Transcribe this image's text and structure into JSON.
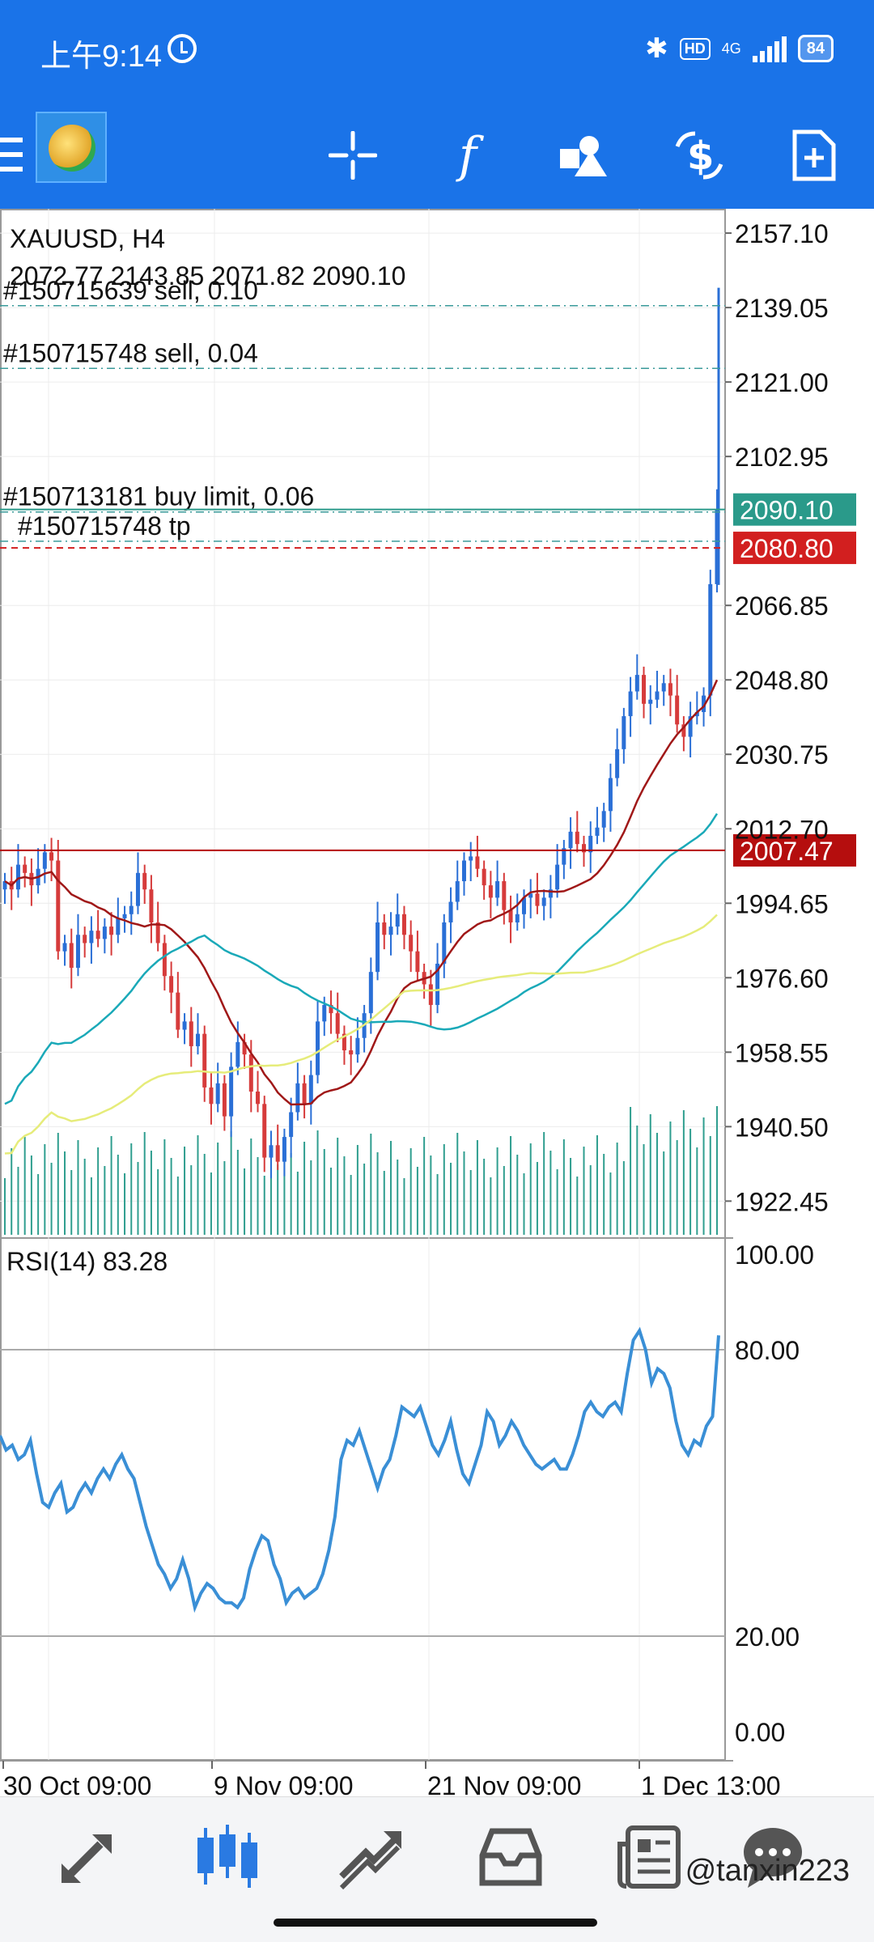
{
  "status_bar": {
    "time": "上午9:14",
    "hd_badge": "HD",
    "network": "4G",
    "battery": "84"
  },
  "toolbar": {
    "items": [
      "menu-icon",
      "app-logo",
      "crosshair-icon",
      "indicators-icon",
      "objects-icon",
      "trade-icon",
      "new-order-icon"
    ],
    "indicator_glyph": "f"
  },
  "chart": {
    "symbol_label": "XAUUSD, H4",
    "ohlc_label": "2072.77 2143.85 2071.82 2090.10",
    "price_axis_labels": [
      "2157.10",
      "2139.05",
      "2121.00",
      "2102.95",
      "2066.85",
      "2048.80",
      "2030.75",
      "2012.70",
      "1994.65",
      "1976.60",
      "1958.55",
      "1940.50",
      "1922.45"
    ],
    "price_range": [
      1913.5,
      2163
    ],
    "current_price": "2090.10",
    "current_price_value": 2090.1,
    "line_price": "2080.80",
    "line_price_value": 2080.8,
    "level_price": "2007.47",
    "level_price_value": 2007.47,
    "orders": [
      {
        "text": "#150715639 sell, 0.10",
        "price": 2139.5
      },
      {
        "text": "#150715748 sell, 0.04",
        "price": 2124.3
      },
      {
        "text": "#150715748 tp",
        "price": 2082.4
      },
      {
        "text": "#150713181 buy limit, 0.06",
        "price": 2089.5
      }
    ],
    "series_colors": {
      "up": "#2a6fd6",
      "down": "#d63b3b",
      "ma_red": "#a01818",
      "ma_teal": "#1aa9b8",
      "ma_yellow": "#e6ec7a",
      "volume": "#2f9e8f",
      "rsi": "#3a8fd6"
    }
  },
  "rsi": {
    "label": "RSI(14) 83.28",
    "axis_labels": [
      "100.00",
      "80.00",
      "20.00",
      "0.00"
    ],
    "levels": [
      80,
      20
    ],
    "values": [
      62,
      59,
      60,
      57,
      58,
      61,
      54,
      48,
      47,
      50,
      52,
      46,
      47,
      50,
      52,
      50,
      53,
      55,
      53,
      56,
      58,
      55,
      53,
      48,
      43,
      39,
      35,
      33,
      30,
      32,
      36,
      32,
      26,
      29,
      31,
      30,
      28,
      27,
      27,
      26,
      28,
      34,
      38,
      41,
      40,
      35,
      32,
      27,
      29,
      30,
      28,
      29,
      30,
      33,
      38,
      45,
      57,
      61,
      60,
      63,
      59,
      55,
      51,
      55,
      57,
      62,
      68,
      67,
      66,
      68,
      64,
      60,
      58,
      61,
      65,
      59,
      54,
      52,
      56,
      60,
      67,
      65,
      60,
      62,
      65,
      63,
      60,
      58,
      56,
      55,
      56,
      57,
      55,
      55,
      58,
      62,
      67,
      69,
      67,
      66,
      68,
      69,
      67,
      75,
      82,
      84,
      80,
      73,
      76,
      75,
      72,
      65,
      60,
      58,
      61,
      60,
      64,
      66,
      83
    ]
  },
  "time_axis": {
    "labels": [
      "30 Oct 09:00",
      "9 Nov 09:00",
      "21 Nov 09:00",
      "1 Dec 13:00"
    ]
  },
  "bottom_nav": {
    "items": [
      "quotes-icon",
      "chart-icon",
      "trade-icon",
      "history-icon",
      "news-icon",
      "messages-icon"
    ],
    "active": "chart-icon",
    "watermark": "@tanxin223"
  },
  "price_path": [
    2000,
    1998,
    2004,
    2002,
    1999,
    2003,
    2007,
    2005,
    1983,
    1985,
    1979,
    1987,
    1985,
    1988,
    1986,
    1989,
    1987,
    1991,
    1992,
    1994,
    2002,
    1998,
    1990,
    1985,
    1977,
    1973,
    1964,
    1966,
    1960,
    1963,
    1950,
    1946,
    1951,
    1943,
    1955,
    1961,
    1958,
    1949,
    1946,
    1933,
    1936,
    1932,
    1938,
    1944,
    1951,
    1946,
    1953,
    1966,
    1970,
    1968,
    1963,
    1959,
    1958,
    1962,
    1968,
    1978,
    1990,
    1987,
    1989,
    1992,
    1987,
    1983,
    1978,
    1975,
    1970,
    1980,
    1990,
    1995,
    2000,
    2005,
    2006,
    2003,
    1999,
    1996,
    2000,
    1993,
    1990,
    1992,
    1996,
    1997,
    1994,
    1996,
    1998,
    2004,
    2008,
    2012,
    2009,
    2007,
    2011,
    2013,
    2017,
    2025,
    2032,
    2040,
    2046,
    2050,
    2043,
    2044,
    2046,
    2048,
    2045,
    2038,
    2035,
    2040,
    2041,
    2045,
    2072,
    2090
  ]
}
